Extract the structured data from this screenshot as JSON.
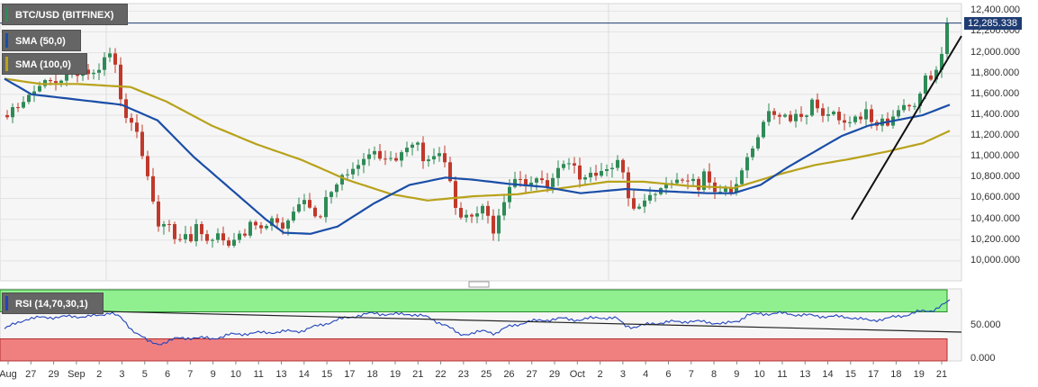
{
  "legend": {
    "price": "BTC/USD (BITFINEX)",
    "sma50": "SMA (50,0)",
    "sma100": "SMA (100,0)",
    "rsi": "RSI (14,70,30,1)"
  },
  "last_price_label": "12,285.338",
  "colors": {
    "up": "#2e8b57",
    "down": "#c0392b",
    "sma50": "#1a4ea8",
    "sma100": "#b8a21b",
    "rsi": "#2244bb",
    "rsi_high_zone": "#90f090",
    "rsi_low_zone": "#f08080",
    "trendline": "#111111",
    "price_tag": "#1f3c73"
  },
  "chart_data": [
    {
      "type": "candlestick",
      "title": "BTC/USD (BITFINEX)",
      "x_tick_labels": [
        "Aug",
        "27",
        "29",
        "Sep",
        "2",
        "3",
        "5",
        "6",
        "7",
        "9",
        "10",
        "11",
        "13",
        "14",
        "15",
        "17",
        "18",
        "19",
        "21",
        "22",
        "23",
        "25",
        "26",
        "27",
        "29",
        "Oct",
        "2",
        "3",
        "4",
        "6",
        "7",
        "8",
        "9",
        "10",
        "11",
        "13",
        "14",
        "15",
        "17",
        "18",
        "19",
        "21"
      ],
      "ylim": [
        9860,
        12420
      ],
      "y_tick_values": [
        10000,
        10200,
        10400,
        10600,
        10800,
        11000,
        11200,
        11400,
        11600,
        11800,
        12000,
        12200,
        12400
      ],
      "y_tick_labels": [
        "10,000.000",
        "10,200.000",
        "10,400.000",
        "10,600.000",
        "10,800.000",
        "11,000.000",
        "11,200.000",
        "11,400.000",
        "11,600.000",
        "11,800.000",
        "12,000.000",
        "12,200.000",
        "12,400.000"
      ],
      "last_price": 12285.338,
      "close_anchors": [
        [
          0,
          11400
        ],
        [
          8,
          11480
        ],
        [
          16,
          11500
        ],
        [
          24,
          11600
        ],
        [
          34,
          11650
        ],
        [
          42,
          11750
        ],
        [
          52,
          11700
        ],
        [
          60,
          11750
        ],
        [
          68,
          11820
        ],
        [
          76,
          11780
        ],
        [
          84,
          11850
        ],
        [
          92,
          11780
        ],
        [
          100,
          11800
        ],
        [
          108,
          11950
        ],
        [
          114,
          12000
        ],
        [
          118,
          11900
        ],
        [
          122,
          11850
        ],
        [
          128,
          11400
        ],
        [
          134,
          11350
        ],
        [
          142,
          11300
        ],
        [
          150,
          11000
        ],
        [
          158,
          10750
        ],
        [
          164,
          10450
        ],
        [
          170,
          10250
        ],
        [
          176,
          10400
        ],
        [
          182,
          10300
        ],
        [
          188,
          10150
        ],
        [
          196,
          10280
        ],
        [
          204,
          10200
        ],
        [
          210,
          10350
        ],
        [
          218,
          10200
        ],
        [
          226,
          10150
        ],
        [
          232,
          10300
        ],
        [
          240,
          10200
        ],
        [
          248,
          10150
        ],
        [
          256,
          10250
        ],
        [
          264,
          10250
        ],
        [
          272,
          10400
        ],
        [
          280,
          10300
        ],
        [
          288,
          10350
        ],
        [
          296,
          10450
        ],
        [
          304,
          10300
        ],
        [
          312,
          10400
        ],
        [
          320,
          10500
        ],
        [
          330,
          10600
        ],
        [
          340,
          10450
        ],
        [
          346,
          10350
        ],
        [
          354,
          10600
        ],
        [
          362,
          10700
        ],
        [
          370,
          10800
        ],
        [
          378,
          10850
        ],
        [
          384,
          10900
        ],
        [
          392,
          10950
        ],
        [
          400,
          11000
        ],
        [
          408,
          11050
        ],
        [
          416,
          10950
        ],
        [
          424,
          11000
        ],
        [
          432,
          10950
        ],
        [
          440,
          11050
        ],
        [
          448,
          11100
        ],
        [
          456,
          11150
        ],
        [
          462,
          10950
        ],
        [
          470,
          11000
        ],
        [
          478,
          11050
        ],
        [
          486,
          10950
        ],
        [
          492,
          10750
        ],
        [
          498,
          10500
        ],
        [
          504,
          10400
        ],
        [
          512,
          10450
        ],
        [
          520,
          10400
        ],
        [
          526,
          10550
        ],
        [
          534,
          10450
        ],
        [
          540,
          10250
        ],
        [
          546,
          10450
        ],
        [
          554,
          10600
        ],
        [
          560,
          10750
        ],
        [
          568,
          10800
        ],
        [
          576,
          10700
        ],
        [
          584,
          10750
        ],
        [
          592,
          10800
        ],
        [
          600,
          10700
        ],
        [
          608,
          10850
        ],
        [
          616,
          10900
        ],
        [
          622,
          10950
        ],
        [
          630,
          10900
        ],
        [
          638,
          10750
        ],
        [
          646,
          10850
        ],
        [
          654,
          10800
        ],
        [
          662,
          10900
        ],
        [
          670,
          10850
        ],
        [
          678,
          10950
        ],
        [
          684,
          10850
        ],
        [
          690,
          10600
        ],
        [
          696,
          10500
        ],
        [
          704,
          10550
        ],
        [
          712,
          10600
        ],
        [
          720,
          10650
        ],
        [
          728,
          10700
        ],
        [
          736,
          10750
        ],
        [
          744,
          10800
        ],
        [
          752,
          10750
        ],
        [
          760,
          10800
        ],
        [
          768,
          10700
        ],
        [
          774,
          10850
        ],
        [
          780,
          10750
        ],
        [
          788,
          10650
        ],
        [
          796,
          10700
        ],
        [
          804,
          10650
        ],
        [
          812,
          10750
        ],
        [
          818,
          10950
        ],
        [
          824,
          11000
        ],
        [
          830,
          11100
        ],
        [
          838,
          11300
        ],
        [
          846,
          11450
        ],
        [
          854,
          11400
        ],
        [
          862,
          11400
        ],
        [
          870,
          11350
        ],
        [
          878,
          11450
        ],
        [
          886,
          11350
        ],
        [
          894,
          11550
        ],
        [
          900,
          11450
        ],
        [
          908,
          11400
        ],
        [
          916,
          11450
        ],
        [
          924,
          11350
        ],
        [
          932,
          11300
        ],
        [
          940,
          11400
        ],
        [
          948,
          11350
        ],
        [
          954,
          11450
        ],
        [
          960,
          11350
        ],
        [
          966,
          11300
        ],
        [
          972,
          11350
        ],
        [
          978,
          11300
        ],
        [
          984,
          11400
        ],
        [
          990,
          11450
        ],
        [
          998,
          11500
        ],
        [
          1006,
          11450
        ],
        [
          1014,
          11600
        ],
        [
          1020,
          11800
        ],
        [
          1026,
          11750
        ],
        [
          1032,
          11850
        ],
        [
          1038,
          12000
        ],
        [
          1044,
          12050
        ],
        [
          1050,
          12285
        ]
      ],
      "sma50_anchors": [
        [
          0,
          11750
        ],
        [
          30,
          11600
        ],
        [
          80,
          11550
        ],
        [
          130,
          11500
        ],
        [
          170,
          11350
        ],
        [
          210,
          11000
        ],
        [
          250,
          10700
        ],
        [
          290,
          10400
        ],
        [
          310,
          10270
        ],
        [
          340,
          10260
        ],
        [
          370,
          10330
        ],
        [
          410,
          10550
        ],
        [
          450,
          10730
        ],
        [
          490,
          10800
        ],
        [
          520,
          10780
        ],
        [
          560,
          10740
        ],
        [
          600,
          10710
        ],
        [
          640,
          10650
        ],
        [
          690,
          10690
        ],
        [
          730,
          10670
        ],
        [
          780,
          10650
        ],
        [
          810,
          10650
        ],
        [
          840,
          10730
        ],
        [
          870,
          10900
        ],
        [
          900,
          11050
        ],
        [
          930,
          11200
        ],
        [
          960,
          11300
        ],
        [
          990,
          11350
        ],
        [
          1020,
          11400
        ],
        [
          1050,
          11500
        ]
      ],
      "sma100_anchors": [
        [
          0,
          11750
        ],
        [
          40,
          11700
        ],
        [
          80,
          11700
        ],
        [
          140,
          11670
        ],
        [
          180,
          11530
        ],
        [
          230,
          11300
        ],
        [
          280,
          11120
        ],
        [
          330,
          10970
        ],
        [
          380,
          10780
        ],
        [
          430,
          10640
        ],
        [
          470,
          10580
        ],
        [
          520,
          10620
        ],
        [
          570,
          10640
        ],
        [
          620,
          10700
        ],
        [
          670,
          10760
        ],
        [
          710,
          10760
        ],
        [
          760,
          10720
        ],
        [
          810,
          10700
        ],
        [
          860,
          10830
        ],
        [
          900,
          10920
        ],
        [
          940,
          10980
        ],
        [
          980,
          11050
        ],
        [
          1020,
          11130
        ],
        [
          1050,
          11250
        ]
      ]
    },
    {
      "type": "line",
      "title": "RSI (14,70,30,1)",
      "ylim": [
        0,
        100
      ],
      "y_tick_values": [
        0,
        50
      ],
      "y_tick_labels": [
        "0.000",
        "50.000"
      ],
      "overbought": 70,
      "oversold": 30,
      "rsi_anchors": [
        [
          0,
          45
        ],
        [
          25,
          60
        ],
        [
          50,
          62
        ],
        [
          80,
          63
        ],
        [
          105,
          64
        ],
        [
          118,
          70
        ],
        [
          128,
          62
        ],
        [
          140,
          45
        ],
        [
          152,
          35
        ],
        [
          160,
          25
        ],
        [
          170,
          22
        ],
        [
          190,
          30
        ],
        [
          210,
          32
        ],
        [
          230,
          30
        ],
        [
          250,
          36
        ],
        [
          270,
          38
        ],
        [
          300,
          40
        ],
        [
          330,
          42
        ],
        [
          350,
          50
        ],
        [
          370,
          58
        ],
        [
          390,
          64
        ],
        [
          410,
          68
        ],
        [
          430,
          66
        ],
        [
          450,
          67
        ],
        [
          470,
          62
        ],
        [
          490,
          50
        ],
        [
          505,
          37
        ],
        [
          520,
          38
        ],
        [
          535,
          42
        ],
        [
          545,
          38
        ],
        [
          560,
          48
        ],
        [
          580,
          55
        ],
        [
          600,
          58
        ],
        [
          620,
          60
        ],
        [
          640,
          58
        ],
        [
          660,
          62
        ],
        [
          680,
          60
        ],
        [
          690,
          50
        ],
        [
          700,
          47
        ],
        [
          720,
          53
        ],
        [
          740,
          55
        ],
        [
          760,
          56
        ],
        [
          780,
          55
        ],
        [
          800,
          52
        ],
        [
          815,
          57
        ],
        [
          825,
          65
        ],
        [
          840,
          67
        ],
        [
          860,
          68
        ],
        [
          880,
          66
        ],
        [
          900,
          64
        ],
        [
          920,
          63
        ],
        [
          940,
          62
        ],
        [
          960,
          57
        ],
        [
          980,
          60
        ],
        [
          1000,
          65
        ],
        [
          1015,
          70
        ],
        [
          1030,
          72
        ],
        [
          1045,
          82
        ],
        [
          1050,
          86
        ]
      ]
    }
  ]
}
